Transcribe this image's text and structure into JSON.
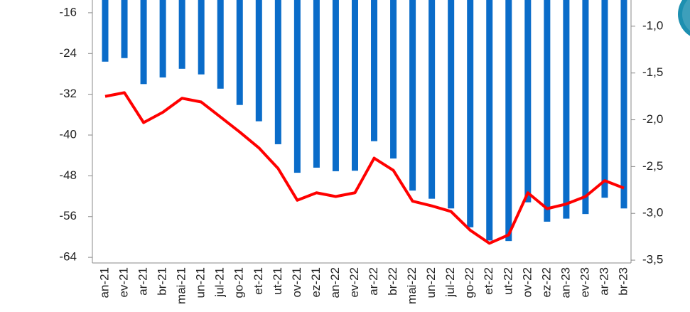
{
  "chart_data": {
    "type": "bar-line",
    "categories": [
      "an-21",
      "ev-21",
      "ar-21",
      "br-21",
      "mai-21",
      "un-21",
      "jul-21",
      "go-21",
      "et-21",
      "ut-21",
      "ov-21",
      "ez-21",
      "an-22",
      "ev-22",
      "ar-22",
      "br-22",
      "mai-22",
      "un-22",
      "jul-22",
      "go-22",
      "et-22",
      "ut-22",
      "ov-22",
      "ez-22",
      "an-23",
      "ev-23",
      "ar-23",
      "br-23"
    ],
    "series": [
      {
        "type": "bar",
        "color": "#0a6cc9",
        "values": [
          -25.6,
          -24.9,
          -30.0,
          -28.7,
          -27.0,
          -28.1,
          -30.9,
          -34.1,
          -37.3,
          -41.8,
          -47.4,
          -46.4,
          -47.1,
          -47.0,
          -41.2,
          -44.6,
          -50.9,
          -52.5,
          -54.4,
          -58.1,
          -60.7,
          -60.8,
          -53.2,
          -57.0,
          -56.4,
          -55.5,
          -52.3,
          -54.4
        ]
      },
      {
        "type": "line",
        "axis": "y2",
        "color": "#ff0000",
        "values": [
          -1.75,
          -1.71,
          -2.03,
          -1.92,
          -1.77,
          -1.81,
          -1.97,
          -2.13,
          -2.3,
          -2.52,
          -2.86,
          -2.78,
          -2.82,
          -2.78,
          -2.41,
          -2.54,
          -2.87,
          -2.92,
          -2.98,
          -3.18,
          -3.32,
          -3.23,
          -2.78,
          -2.95,
          -2.9,
          -2.82,
          -2.65,
          -2.73
        ]
      }
    ],
    "ylim": [
      -65.1,
      -13.5
    ],
    "yticks": [
      -16,
      -24,
      -32,
      -40,
      -48,
      -56,
      -64
    ],
    "y2lim": [
      -3.53,
      -0.72
    ],
    "y2ticks": [
      {
        "value": -1.0,
        "label": "-1,0"
      },
      {
        "value": -1.5,
        "label": "-1,5"
      },
      {
        "value": -2.0,
        "label": "-2,0"
      },
      {
        "value": -2.5,
        "label": "-2,5"
      },
      {
        "value": -3.0,
        "label": "-3,0"
      },
      {
        "value": -3.5,
        "label": "-3,5"
      }
    ]
  }
}
